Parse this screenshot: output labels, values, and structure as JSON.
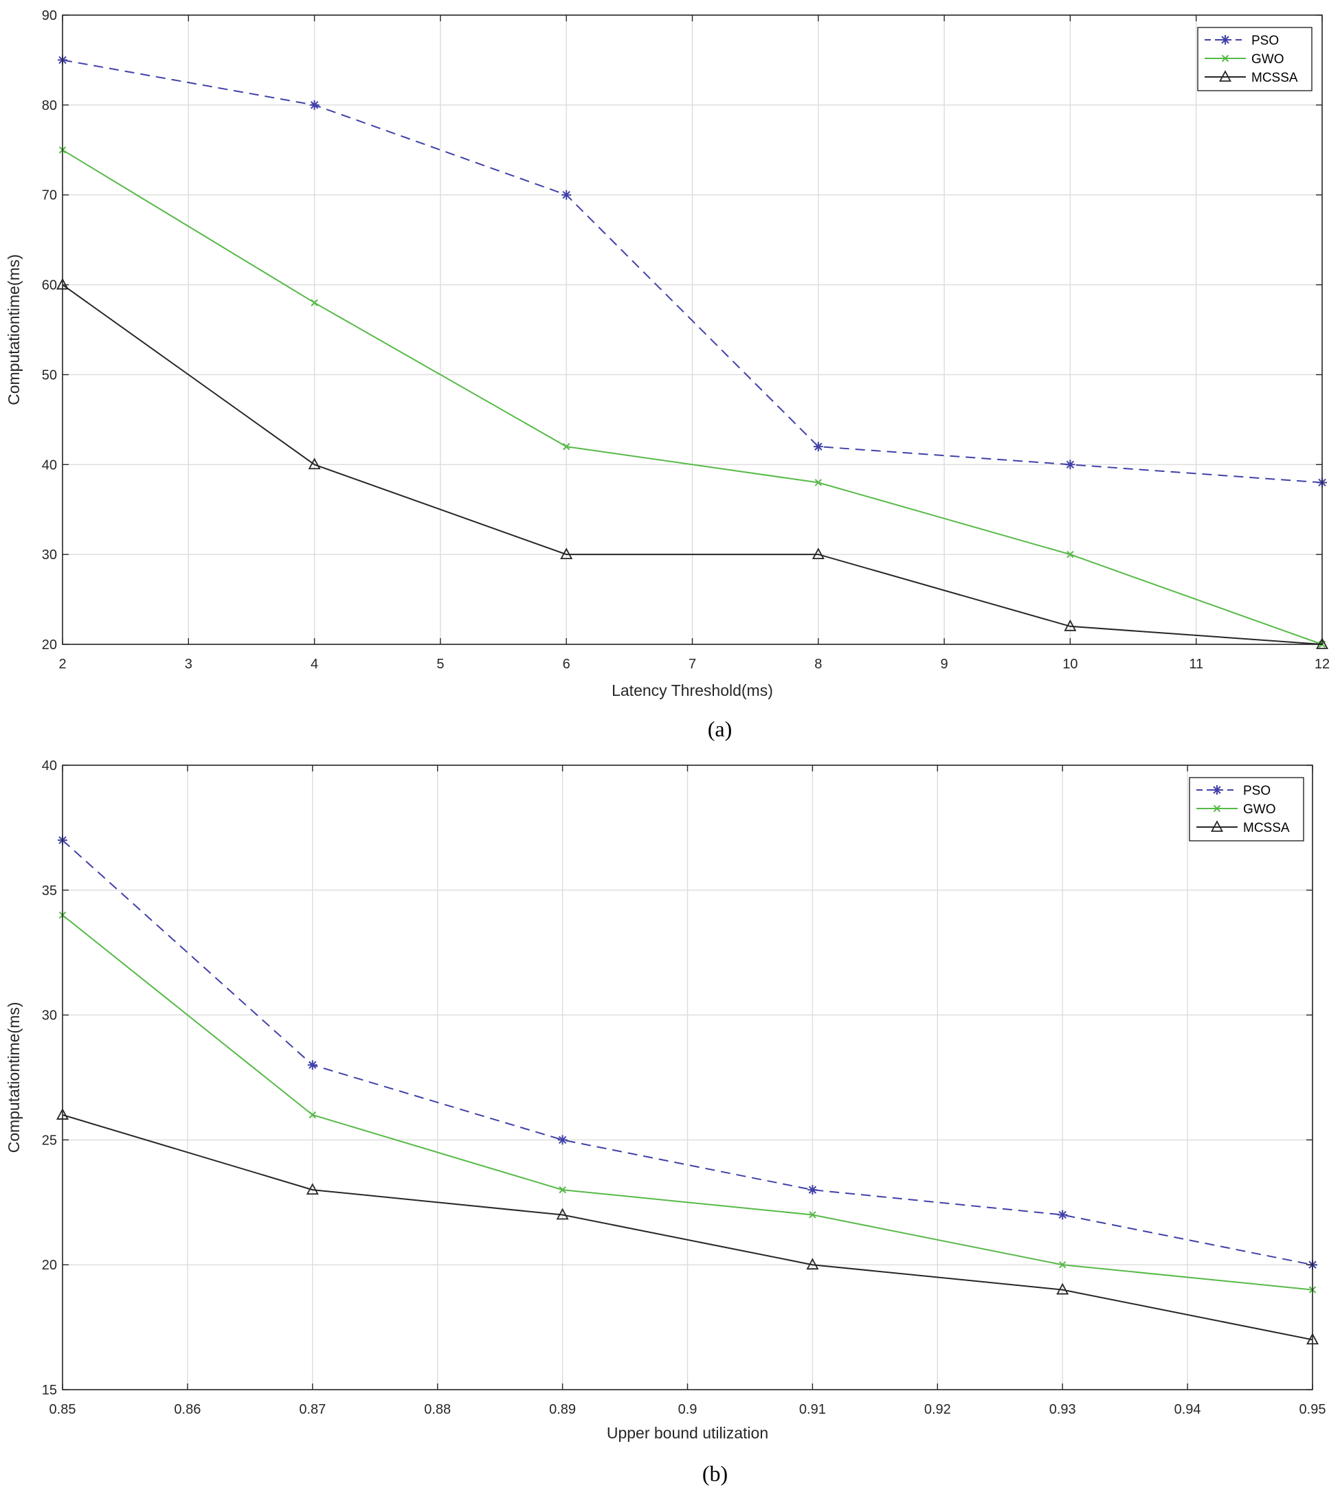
{
  "chart_data": [
    {
      "type": "line",
      "caption": "(a)",
      "xlabel": "Latency Threshold(ms)",
      "ylabel": "Computationtime(ms)",
      "xlim": [
        2,
        12
      ],
      "ylim": [
        20,
        90
      ],
      "xticks": [
        2,
        3,
        4,
        5,
        6,
        7,
        8,
        9,
        10,
        11,
        12
      ],
      "yticks": [
        20,
        30,
        40,
        50,
        60,
        70,
        80,
        90
      ],
      "grid": true,
      "legend_position": "top-right",
      "x": [
        2,
        4,
        6,
        8,
        10,
        12
      ],
      "series": [
        {
          "name": "PSO",
          "values": [
            85,
            80,
            70,
            42,
            40,
            38
          ],
          "color": "#4040a8",
          "dash": "dashed",
          "marker": "star"
        },
        {
          "name": "GWO",
          "values": [
            75,
            58,
            42,
            38,
            30,
            20
          ],
          "color": "#56b947",
          "dash": "solid",
          "marker": "x"
        },
        {
          "name": "MCSSA",
          "values": [
            60,
            40,
            30,
            30,
            22,
            20
          ],
          "color": "#262626",
          "dash": "solid",
          "marker": "triangle"
        }
      ]
    },
    {
      "type": "line",
      "caption": "(b)",
      "xlabel": "Upper bound utilization",
      "ylabel": "Computationtime(ms)",
      "xlim": [
        0.85,
        0.95
      ],
      "ylim": [
        15,
        40
      ],
      "xticks": [
        0.85,
        0.86,
        0.87,
        0.88,
        0.89,
        0.9,
        0.91,
        0.92,
        0.93,
        0.94,
        0.95
      ],
      "yticks": [
        15,
        20,
        25,
        30,
        35,
        40
      ],
      "grid": true,
      "legend_position": "top-right",
      "x": [
        0.85,
        0.87,
        0.89,
        0.91,
        0.93,
        0.95
      ],
      "series": [
        {
          "name": "PSO",
          "values": [
            37,
            28,
            25,
            23,
            22,
            20
          ],
          "color": "#4040a8",
          "dash": "dashed",
          "marker": "star"
        },
        {
          "name": "GWO",
          "values": [
            34,
            26,
            23,
            22,
            20,
            19
          ],
          "color": "#56b947",
          "dash": "solid",
          "marker": "x"
        },
        {
          "name": "MCSSA",
          "values": [
            26,
            23,
            22,
            20,
            19,
            17
          ],
          "color": "#262626",
          "dash": "solid",
          "marker": "triangle"
        }
      ]
    }
  ]
}
